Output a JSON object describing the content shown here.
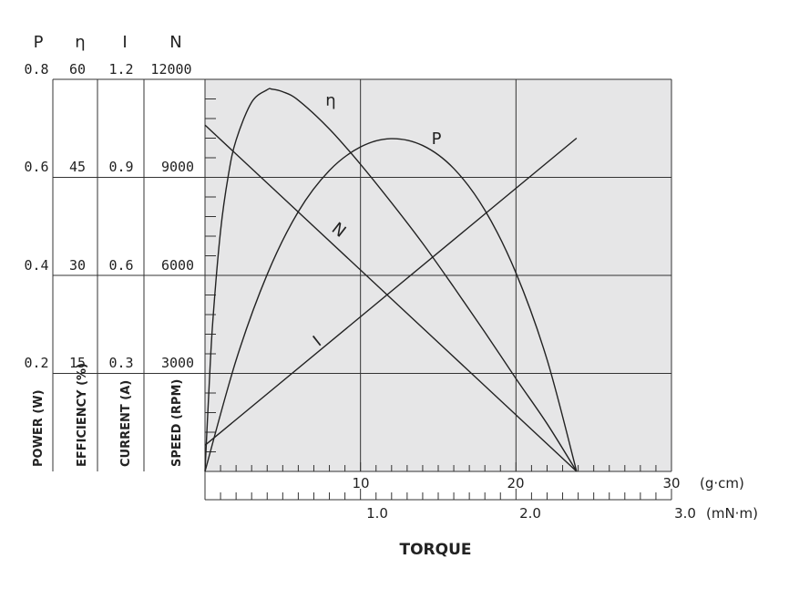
{
  "chart_data": {
    "type": "line",
    "y_axes": [
      {
        "symbol": "P",
        "label": "POWER (W)",
        "ticks": [
          "0.2",
          "0.4",
          "0.6",
          "0.8"
        ],
        "ylim": [
          0,
          0.8
        ]
      },
      {
        "symbol": "η",
        "label": "EFFICIENCY (%)",
        "ticks": [
          "15",
          "30",
          "45",
          "60"
        ],
        "ylim": [
          0,
          60
        ]
      },
      {
        "symbol": "I",
        "label": "CURRENT (A)",
        "ticks": [
          "0.3",
          "0.6",
          "0.9",
          "1.2"
        ],
        "ylim": [
          0,
          1.2
        ]
      },
      {
        "symbol": "N",
        "label": "SPEED (RPM)",
        "ticks": [
          "3000",
          "6000",
          "9000",
          "12000"
        ],
        "ylim": [
          0,
          12000
        ]
      }
    ],
    "x_axes": [
      {
        "unit": "(g·cm)",
        "ticks": [
          "10",
          "20",
          "30"
        ],
        "xlim": [
          0,
          30
        ]
      },
      {
        "unit": "(mN·m)",
        "ticks": [
          "1.0",
          "2.0",
          "3.0"
        ],
        "xlim": [
          0,
          3.0
        ]
      }
    ],
    "xlabel": "TORQUE",
    "grid": true,
    "series": [
      {
        "name": "N",
        "axis": "N",
        "x": [
          0,
          23.9
        ],
        "y": [
          10600,
          0
        ]
      },
      {
        "name": "I",
        "axis": "I",
        "x": [
          0,
          23.9
        ],
        "y": [
          0.08,
          1.02
        ]
      },
      {
        "name": "P",
        "axis": "P",
        "x": [
          0,
          2,
          4,
          6,
          8,
          10,
          11.95,
          14,
          16,
          18,
          20,
          22,
          23.9
        ],
        "y": [
          0,
          0.227,
          0.402,
          0.53,
          0.614,
          0.662,
          0.679,
          0.665,
          0.618,
          0.533,
          0.405,
          0.228,
          0
        ]
      },
      {
        "name": "η",
        "axis": "η",
        "x": [
          0,
          0.25,
          0.5,
          1,
          1.5,
          2,
          3,
          4,
          4.3,
          5,
          6,
          8,
          10,
          12,
          14,
          16,
          18,
          20,
          22,
          23.9
        ],
        "y": [
          0,
          12.3,
          22.9,
          36.8,
          45.3,
          50.7,
          56.5,
          58.4,
          58.5,
          58.1,
          56.8,
          52.4,
          47.0,
          41.1,
          34.9,
          28.2,
          21.3,
          14.2,
          7.3,
          0
        ]
      }
    ],
    "curve_labels": [
      {
        "text": "η",
        "series": "η"
      },
      {
        "text": "P",
        "series": "P"
      },
      {
        "text": "N",
        "series": "N"
      },
      {
        "text": "I",
        "series": "I"
      }
    ]
  }
}
